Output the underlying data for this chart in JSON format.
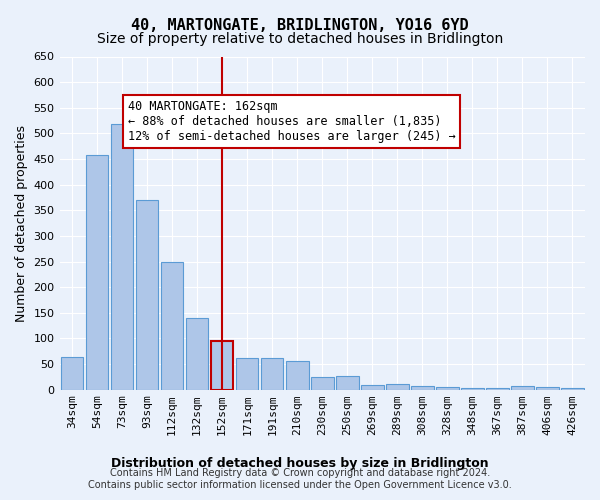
{
  "title": "40, MARTONGATE, BRIDLINGTON, YO16 6YD",
  "subtitle": "Size of property relative to detached houses in Bridlington",
  "xlabel_bottom": "Distribution of detached houses by size in Bridlington",
  "ylabel": "Number of detached properties",
  "categories": [
    "34sqm",
    "54sqm",
    "73sqm",
    "93sqm",
    "112sqm",
    "132sqm",
    "152sqm",
    "171sqm",
    "191sqm",
    "210sqm",
    "230sqm",
    "250sqm",
    "269sqm",
    "289sqm",
    "308sqm",
    "328sqm",
    "348sqm",
    "367sqm",
    "387sqm",
    "406sqm",
    "426sqm"
  ],
  "values": [
    63,
    457,
    519,
    370,
    249,
    140,
    95,
    62,
    61,
    56,
    25,
    26,
    10,
    11,
    7,
    6,
    4,
    3,
    7,
    6,
    4
  ],
  "bar_color": "#AEC6E8",
  "bar_edge_color": "#5B9BD5",
  "highlight_bar_index": 6,
  "highlight_bar_color": "#AEC6E8",
  "highlight_bar_edge_color": "#C00000",
  "vline_x": 6.5,
  "vline_color": "#C00000",
  "annotation_text": "40 MARTONGATE: 162sqm\n← 88% of detached houses are smaller (1,835)\n12% of semi-detached houses are larger (245) →",
  "annotation_box_color": "#FFFFFF",
  "annotation_box_edge_color": "#C00000",
  "ylim": [
    0,
    650
  ],
  "yticks": [
    0,
    50,
    100,
    150,
    200,
    250,
    300,
    350,
    400,
    450,
    500,
    550,
    600,
    650
  ],
  "footnote": "Contains HM Land Registry data © Crown copyright and database right 2024.\nContains public sector information licensed under the Open Government Licence v3.0.",
  "bg_color": "#EAF1FB",
  "axes_bg_color": "#EAF1FB",
  "title_fontsize": 11,
  "subtitle_fontsize": 10,
  "annotation_fontsize": 8.5,
  "axis_label_fontsize": 9,
  "tick_fontsize": 8,
  "footnote_fontsize": 7
}
